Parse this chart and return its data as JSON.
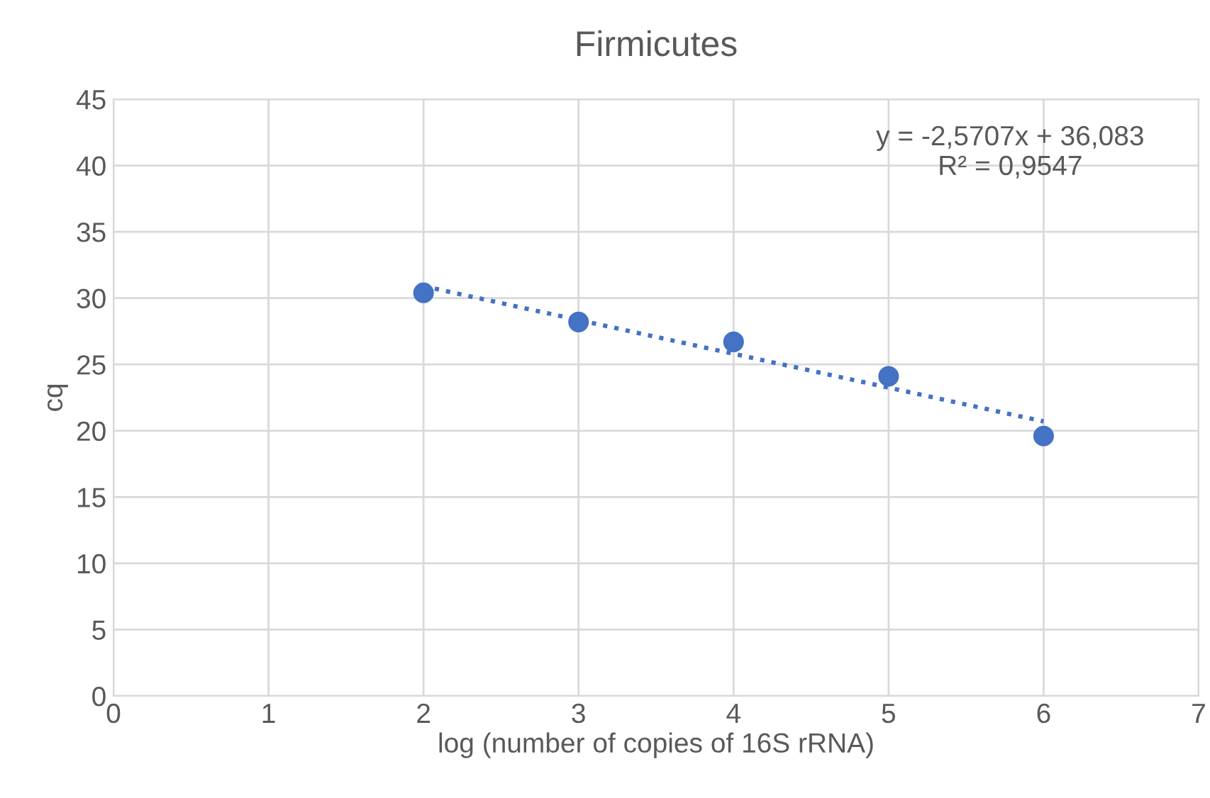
{
  "chart_data": {
    "type": "scatter",
    "title": "Firmicutes",
    "xlabel": "log (number of copies of 16S rRNA)",
    "ylabel": "cq",
    "series": [
      {
        "color": "#4472c4",
        "x": [
          2,
          3,
          4,
          5,
          6
        ],
        "values": [
          30.4,
          28.2,
          26.7,
          24.1,
          19.6
        ],
        "marker": "circle"
      },
      {
        "type": "line",
        "color": "#4472c4",
        "x": [
          2,
          6
        ],
        "values": [
          30.9,
          20.7
        ],
        "line_style": "dotted",
        "marker": "none"
      }
    ],
    "annotations": [
      "y = -2,5707x + 36,083\nR² = 0,9547"
    ],
    "xlim": [
      0,
      7
    ],
    "xticks": [
      0,
      1,
      2,
      3,
      4,
      5,
      6,
      7
    ],
    "ylim": [
      0,
      45
    ],
    "yticks": [
      0,
      5,
      10,
      15,
      20,
      25,
      30,
      35,
      40,
      45
    ],
    "grid": true,
    "legend": false
  }
}
